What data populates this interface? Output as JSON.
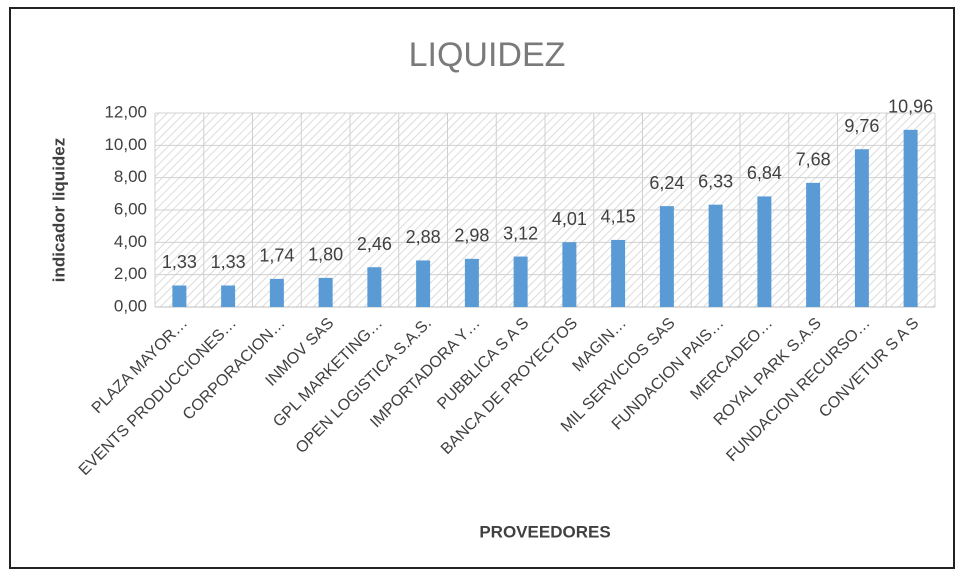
{
  "chart_data": {
    "type": "bar",
    "title": "LIQUIDEZ",
    "x_label": "PROVEEDORES",
    "y_label": "indicador liquidez",
    "categories": [
      "PLAZA MAYOR…",
      "EVENTS PRODUCCIONES…",
      "CORPORACION…",
      "INMOV SAS",
      "GPL MARKETING…",
      "OPEN LOGISTICA S.A.S.",
      "IMPORTADORA Y…",
      "PUBBLICA S A S",
      "BANCA DE PROYECTOS",
      "MAGIN…",
      "MIL SERVICIOS SAS",
      "FUNDACION PAIS…",
      "MERCADEO…",
      "ROYAL PARK S.A.S",
      "FUNDACION RECURSO…",
      "CONVETUR S A S"
    ],
    "values": [
      1.33,
      1.33,
      1.74,
      1.8,
      2.46,
      2.88,
      2.98,
      3.12,
      4.01,
      4.15,
      6.24,
      6.33,
      6.84,
      7.68,
      9.76,
      10.96
    ],
    "value_labels": [
      "1,33",
      "1,33",
      "1,74",
      "1,80",
      "2,46",
      "2,88",
      "2,98",
      "3,12",
      "4,01",
      "4,15",
      "6,24",
      "6,33",
      "6,84",
      "7,68",
      "9,76",
      "10,96"
    ],
    "color": "#5b9bd5",
    "ylim": [
      0,
      12
    ],
    "yticks": [
      {
        "value": 0,
        "label": "0,00"
      },
      {
        "value": 2,
        "label": "2,00"
      },
      {
        "value": 4,
        "label": "4,00"
      },
      {
        "value": 6,
        "label": "6,00"
      },
      {
        "value": 8,
        "label": "8,00"
      },
      {
        "value": 10,
        "label": "10,00"
      },
      {
        "value": 12,
        "label": "12,00"
      }
    ],
    "grid": true
  }
}
